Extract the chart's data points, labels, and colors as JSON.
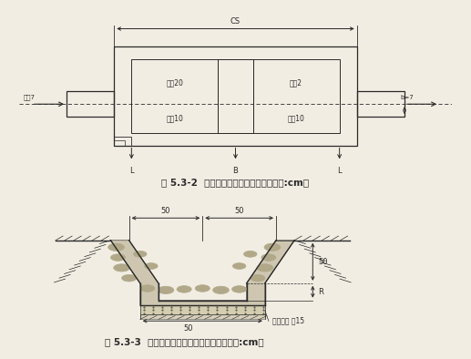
{
  "bg_color": "#f2ede3",
  "line_color": "#2a2a2a",
  "title1": "图 5.3-2  干砌石沉砂池平面设计图（单位:cm）",
  "title2": "图 5.3-3  干砌石排水沟典型设计断面图（单位:cm）",
  "label1_top": "CS",
  "label1_left": "沉沙7",
  "label1_right": "b=7",
  "label1_inner_tl": "沉积20",
  "label1_inner_tr": "胶积2",
  "label1_inner_bl": "沉积10",
  "label1_inner_br": "沉积10",
  "label1_bot_l": "L",
  "label1_bot_m": "B",
  "label1_bot_r": "L",
  "label2_top_l": "50",
  "label2_top_r": "50",
  "label2_right_h": "50",
  "label2_right_d": "R",
  "label2_bot": "50",
  "label2_bot_text": "砂砾垫层 厚15"
}
